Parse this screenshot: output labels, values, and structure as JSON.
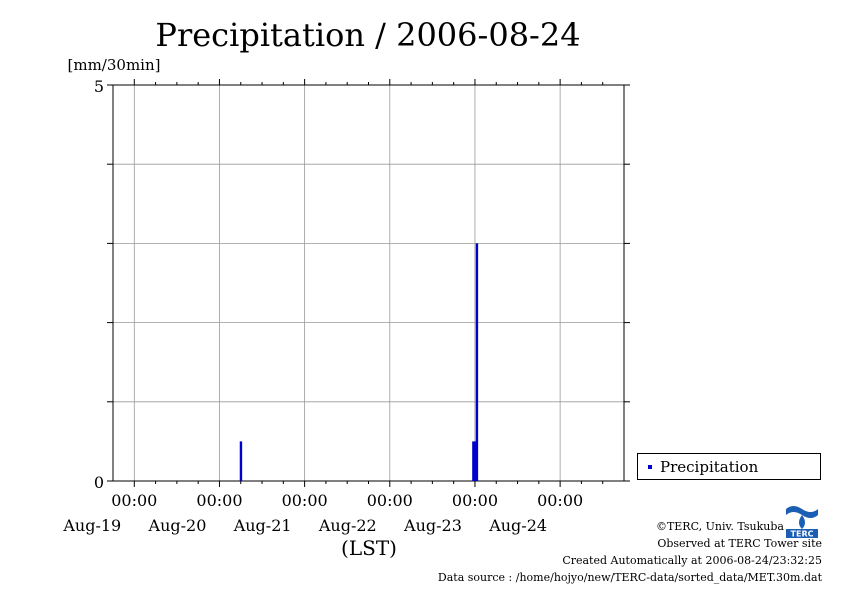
{
  "chart_data": {
    "type": "bar",
    "title": "Precipitation / 2006-08-24",
    "ylabel": "[mm/30min]",
    "xlabel": "(LST)",
    "ylim": [
      0,
      5
    ],
    "y_tick_labels": [
      "0",
      "5"
    ],
    "y_gridlines": [
      1,
      2,
      3,
      4
    ],
    "x_range": [
      "2006-08-18T18:00",
      "2006-08-24T18:00"
    ],
    "x_tick_labels": [
      {
        "time": "00:00",
        "date": "Aug-19"
      },
      {
        "time": "00:00",
        "date": "Aug-20"
      },
      {
        "time": "00:00",
        "date": "Aug-21"
      },
      {
        "time": "00:00",
        "date": "Aug-22"
      },
      {
        "time": "00:00",
        "date": "Aug-23"
      },
      {
        "time": "00:00",
        "date": "Aug-24"
      }
    ],
    "grid": true,
    "legend_position": "right",
    "series": [
      {
        "name": "Precipitation",
        "color": "#0000cc",
        "points": [
          {
            "x": "2006-08-20T06:00",
            "y": 0.5
          },
          {
            "x": "2006-08-22T23:30",
            "y": 0.5
          },
          {
            "x": "2006-08-23T00:00",
            "y": 0.5
          },
          {
            "x": "2006-08-23T00:30",
            "y": 3.0
          }
        ]
      }
    ]
  },
  "credits": {
    "copyright": "©TERC, Univ. Tsukuba",
    "site": "Observed at TERC Tower site",
    "created": "Created Automatically at 2006-08-24/23:32:25",
    "source": "Data source : /home/hojyo/new/TERC-data/sorted_data/MET.30m.dat"
  },
  "logo": {
    "icon": "terc-logo-icon",
    "text": "TERC",
    "color": "#1a5fb4"
  }
}
